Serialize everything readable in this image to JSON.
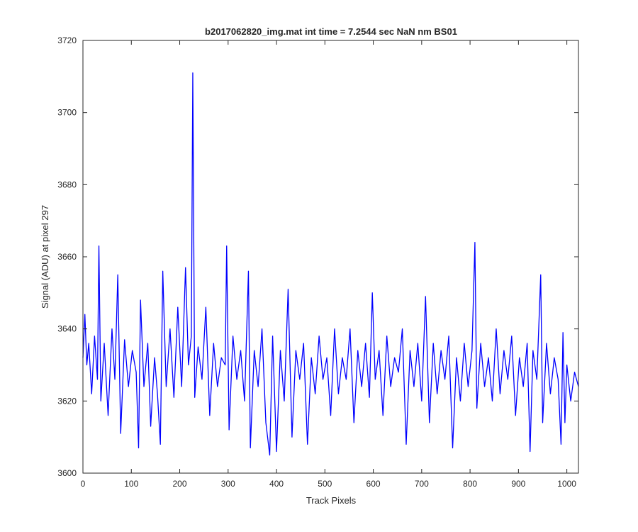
{
  "chart_data": {
    "type": "line",
    "title": "b2017062820_img.mat int time = 7.2544 sec  NaN nm BS01",
    "xlabel": "Track Pixels",
    "ylabel": "Signal (ADU) at pixel 297",
    "xlim": [
      0,
      1024
    ],
    "ylim": [
      3600,
      3720
    ],
    "xticks": [
      0,
      100,
      200,
      300,
      400,
      500,
      600,
      700,
      800,
      900,
      1000
    ],
    "yticks": [
      3600,
      3620,
      3640,
      3660,
      3680,
      3700,
      3720
    ],
    "grid": false,
    "line_color": "#0000ff",
    "series": [
      {
        "points": [
          [
            0,
            3632
          ],
          [
            4,
            3644
          ],
          [
            8,
            3630
          ],
          [
            12,
            3636
          ],
          [
            18,
            3622
          ],
          [
            24,
            3638
          ],
          [
            30,
            3626
          ],
          [
            33,
            3663
          ],
          [
            37,
            3620
          ],
          [
            44,
            3636
          ],
          [
            52,
            3616
          ],
          [
            60,
            3640
          ],
          [
            66,
            3626
          ],
          [
            72,
            3655
          ],
          [
            78,
            3611
          ],
          [
            86,
            3637
          ],
          [
            94,
            3624
          ],
          [
            102,
            3634
          ],
          [
            110,
            3628
          ],
          [
            115,
            3607
          ],
          [
            119,
            3648
          ],
          [
            126,
            3624
          ],
          [
            134,
            3636
          ],
          [
            140,
            3613
          ],
          [
            148,
            3632
          ],
          [
            154,
            3622
          ],
          [
            160,
            3608
          ],
          [
            165,
            3656
          ],
          [
            172,
            3624
          ],
          [
            180,
            3640
          ],
          [
            188,
            3621
          ],
          [
            196,
            3646
          ],
          [
            204,
            3624
          ],
          [
            212,
            3657
          ],
          [
            218,
            3630
          ],
          [
            224,
            3638
          ],
          [
            227,
            3711
          ],
          [
            231,
            3621
          ],
          [
            238,
            3635
          ],
          [
            246,
            3626
          ],
          [
            254,
            3646
          ],
          [
            262,
            3616
          ],
          [
            270,
            3636
          ],
          [
            278,
            3624
          ],
          [
            286,
            3632
          ],
          [
            294,
            3630
          ],
          [
            297,
            3663
          ],
          [
            302,
            3612
          ],
          [
            310,
            3638
          ],
          [
            318,
            3626
          ],
          [
            326,
            3634
          ],
          [
            334,
            3620
          ],
          [
            342,
            3656
          ],
          [
            346,
            3607
          ],
          [
            354,
            3634
          ],
          [
            362,
            3624
          ],
          [
            370,
            3640
          ],
          [
            378,
            3614
          ],
          [
            386,
            3605
          ],
          [
            392,
            3638
          ],
          [
            400,
            3606
          ],
          [
            408,
            3634
          ],
          [
            416,
            3620
          ],
          [
            424,
            3651
          ],
          [
            432,
            3610
          ],
          [
            440,
            3634
          ],
          [
            448,
            3626
          ],
          [
            456,
            3636
          ],
          [
            464,
            3608
          ],
          [
            472,
            3632
          ],
          [
            480,
            3622
          ],
          [
            488,
            3638
          ],
          [
            496,
            3626
          ],
          [
            504,
            3632
          ],
          [
            512,
            3616
          ],
          [
            520,
            3640
          ],
          [
            528,
            3622
          ],
          [
            536,
            3632
          ],
          [
            544,
            3626
          ],
          [
            552,
            3640
          ],
          [
            560,
            3614
          ],
          [
            568,
            3634
          ],
          [
            576,
            3624
          ],
          [
            584,
            3636
          ],
          [
            592,
            3621
          ],
          [
            598,
            3650
          ],
          [
            604,
            3626
          ],
          [
            612,
            3634
          ],
          [
            620,
            3616
          ],
          [
            628,
            3638
          ],
          [
            636,
            3624
          ],
          [
            644,
            3632
          ],
          [
            652,
            3628
          ],
          [
            660,
            3640
          ],
          [
            668,
            3608
          ],
          [
            676,
            3634
          ],
          [
            684,
            3624
          ],
          [
            692,
            3636
          ],
          [
            700,
            3620
          ],
          [
            708,
            3649
          ],
          [
            716,
            3614
          ],
          [
            724,
            3636
          ],
          [
            732,
            3622
          ],
          [
            740,
            3634
          ],
          [
            748,
            3626
          ],
          [
            756,
            3638
          ],
          [
            764,
            3607
          ],
          [
            772,
            3632
          ],
          [
            780,
            3620
          ],
          [
            788,
            3636
          ],
          [
            796,
            3624
          ],
          [
            804,
            3634
          ],
          [
            810,
            3664
          ],
          [
            814,
            3618
          ],
          [
            822,
            3636
          ],
          [
            830,
            3624
          ],
          [
            838,
            3632
          ],
          [
            846,
            3620
          ],
          [
            854,
            3640
          ],
          [
            862,
            3622
          ],
          [
            870,
            3634
          ],
          [
            878,
            3626
          ],
          [
            886,
            3638
          ],
          [
            894,
            3616
          ],
          [
            902,
            3632
          ],
          [
            910,
            3624
          ],
          [
            918,
            3636
          ],
          [
            924,
            3606
          ],
          [
            930,
            3634
          ],
          [
            938,
            3626
          ],
          [
            946,
            3655
          ],
          [
            950,
            3614
          ],
          [
            958,
            3636
          ],
          [
            966,
            3622
          ],
          [
            974,
            3632
          ],
          [
            982,
            3626
          ],
          [
            988,
            3608
          ],
          [
            992,
            3639
          ],
          [
            996,
            3614
          ],
          [
            1000,
            3630
          ],
          [
            1008,
            3620
          ],
          [
            1016,
            3628
          ],
          [
            1024,
            3624
          ]
        ]
      }
    ]
  }
}
